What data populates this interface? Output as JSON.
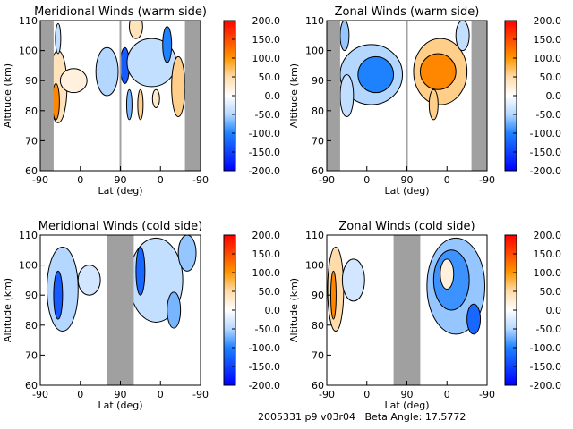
{
  "footer": {
    "text": "2005331 p9 v03r04   Beta Angle: 17.5772"
  },
  "chart_data": [
    {
      "type": "heatmap",
      "title": "Meridional Winds (warm side)",
      "xlabel": "Lat (deg)",
      "ylabel": "Altitude (km)",
      "xticks": [
        "-90",
        "0",
        "90",
        "0",
        "-90"
      ],
      "yticks": [
        "60",
        "70",
        "80",
        "90",
        "100",
        "110"
      ],
      "ylim": [
        60,
        110
      ],
      "colorbar": {
        "ticks": [
          "200.0",
          "150.0",
          "100.0",
          "50.0",
          "0.0",
          "-50.0",
          "-100.0",
          "-150.0",
          "-200.0"
        ],
        "range": [
          -200,
          200
        ]
      },
      "no_data": [
        [
          0,
          30
        ],
        [
          325,
          360
        ],
        [
          178,
          182
        ]
      ],
      "features": [
        {
          "pos": 40,
          "alt": 88,
          "rx": 20,
          "ry": 12,
          "value": 40
        },
        {
          "pos": 35,
          "alt": 83,
          "rx": 8,
          "ry": 6,
          "value": 110
        },
        {
          "pos": 75,
          "alt": 90,
          "rx": 30,
          "ry": 4,
          "value": 20
        },
        {
          "pos": 40,
          "alt": 104,
          "rx": 6,
          "ry": 5,
          "value": -40
        },
        {
          "pos": 150,
          "alt": 93,
          "rx": 25,
          "ry": 8,
          "value": -50
        },
        {
          "pos": 190,
          "alt": 95,
          "rx": 10,
          "ry": 6,
          "value": -130
        },
        {
          "pos": 225,
          "alt": 82,
          "rx": 6,
          "ry": 5,
          "value": 60
        },
        {
          "pos": 200,
          "alt": 82,
          "rx": 6,
          "ry": 5,
          "value": -70
        },
        {
          "pos": 260,
          "alt": 84,
          "rx": 8,
          "ry": 3,
          "value": 30
        },
        {
          "pos": 250,
          "alt": 96,
          "rx": 55,
          "ry": 8,
          "value": -40
        },
        {
          "pos": 285,
          "alt": 102,
          "rx": 10,
          "ry": 6,
          "value": -100
        },
        {
          "pos": 215,
          "alt": 108,
          "rx": 15,
          "ry": 4,
          "value": 40
        },
        {
          "pos": 310,
          "alt": 88,
          "rx": 15,
          "ry": 10,
          "value": 60
        }
      ]
    },
    {
      "type": "heatmap",
      "title": "Zonal Winds (warm side)",
      "xlabel": "Lat (deg)",
      "ylabel": "Altitude (km)",
      "xticks": [
        "-90",
        "0",
        "90",
        "0",
        "-90"
      ],
      "yticks": [
        "60",
        "70",
        "80",
        "90",
        "100",
        "110"
      ],
      "ylim": [
        60,
        110
      ],
      "colorbar": {
        "ticks": [
          "200.0",
          "150.0",
          "100.0",
          "50.0",
          "0.0",
          "-50.0",
          "-100.0",
          "-150.0",
          "-200.0"
        ],
        "range": [
          -200,
          200
        ]
      },
      "no_data": [
        [
          0,
          30
        ],
        [
          325,
          360
        ],
        [
          178,
          182
        ]
      ],
      "features": [
        {
          "pos": 100,
          "alt": 92,
          "rx": 70,
          "ry": 10,
          "value": -50
        },
        {
          "pos": 110,
          "alt": 92,
          "rx": 40,
          "ry": 6,
          "value": -100
        },
        {
          "pos": 45,
          "alt": 85,
          "rx": 15,
          "ry": 7,
          "value": -40
        },
        {
          "pos": 40,
          "alt": 105,
          "rx": 10,
          "ry": 5,
          "value": -60
        },
        {
          "pos": 255,
          "alt": 93,
          "rx": 60,
          "ry": 11,
          "value": 60
        },
        {
          "pos": 250,
          "alt": 93,
          "rx": 40,
          "ry": 6,
          "value": 110
        },
        {
          "pos": 240,
          "alt": 82,
          "rx": 10,
          "ry": 5,
          "value": 60
        },
        {
          "pos": 305,
          "alt": 105,
          "rx": 15,
          "ry": 5,
          "value": -40
        }
      ]
    },
    {
      "type": "heatmap",
      "title": "Meridional Winds (cold side)",
      "xlabel": "Lat (deg)",
      "ylabel": "Altitude (km)",
      "xticks": [
        "-90",
        "0",
        "90",
        "0",
        "-90"
      ],
      "yticks": [
        "60",
        "70",
        "80",
        "90",
        "100",
        "110"
      ],
      "ylim": [
        60,
        110
      ],
      "colorbar": {
        "ticks": [
          "200.0",
          "150.0",
          "100.0",
          "50.0",
          "0.0",
          "-50.0",
          "-100.0",
          "-150.0",
          "-200.0"
        ],
        "range": [
          -200,
          200
        ]
      },
      "no_data": [
        [
          150,
          210
        ]
      ],
      "features": [
        {
          "pos": 50,
          "alt": 92,
          "rx": 35,
          "ry": 14,
          "value": -50
        },
        {
          "pos": 40,
          "alt": 90,
          "rx": 10,
          "ry": 8,
          "value": -130
        },
        {
          "pos": 110,
          "alt": 95,
          "rx": 25,
          "ry": 5,
          "value": -30
        },
        {
          "pos": 260,
          "alt": 95,
          "rx": 60,
          "ry": 14,
          "value": -40
        },
        {
          "pos": 225,
          "alt": 98,
          "rx": 10,
          "ry": 8,
          "value": -120
        },
        {
          "pos": 300,
          "alt": 85,
          "rx": 15,
          "ry": 6,
          "value": -70
        },
        {
          "pos": 330,
          "alt": 104,
          "rx": 20,
          "ry": 6,
          "value": -60
        }
      ]
    },
    {
      "type": "heatmap",
      "title": "Zonal Winds (cold side)",
      "xlabel": "Lat (deg)",
      "ylabel": "Altitude (km)",
      "xticks": [
        "-90",
        "0",
        "90",
        "0",
        "-90"
      ],
      "yticks": [
        "60",
        "70",
        "80",
        "90",
        "100",
        "110"
      ],
      "ylim": [
        60,
        110
      ],
      "colorbar": {
        "ticks": [
          "200.0",
          "150.0",
          "100.0",
          "50.0",
          "0.0",
          "-50.0",
          "-100.0",
          "-150.0",
          "-200.0"
        ],
        "range": [
          -200,
          200
        ]
      },
      "no_data": [
        [
          150,
          210
        ]
      ],
      "features": [
        {
          "pos": 20,
          "alt": 92,
          "rx": 18,
          "ry": 14,
          "value": 50
        },
        {
          "pos": 15,
          "alt": 90,
          "rx": 6,
          "ry": 8,
          "value": 110
        },
        {
          "pos": 60,
          "alt": 95,
          "rx": 25,
          "ry": 7,
          "value": -30
        },
        {
          "pos": 290,
          "alt": 93,
          "rx": 65,
          "ry": 16,
          "value": -60
        },
        {
          "pos": 280,
          "alt": 95,
          "rx": 40,
          "ry": 10,
          "value": -90
        },
        {
          "pos": 270,
          "alt": 97,
          "rx": 15,
          "ry": 5,
          "value": 20
        },
        {
          "pos": 330,
          "alt": 82,
          "rx": 15,
          "ry": 5,
          "value": -120
        }
      ]
    }
  ]
}
